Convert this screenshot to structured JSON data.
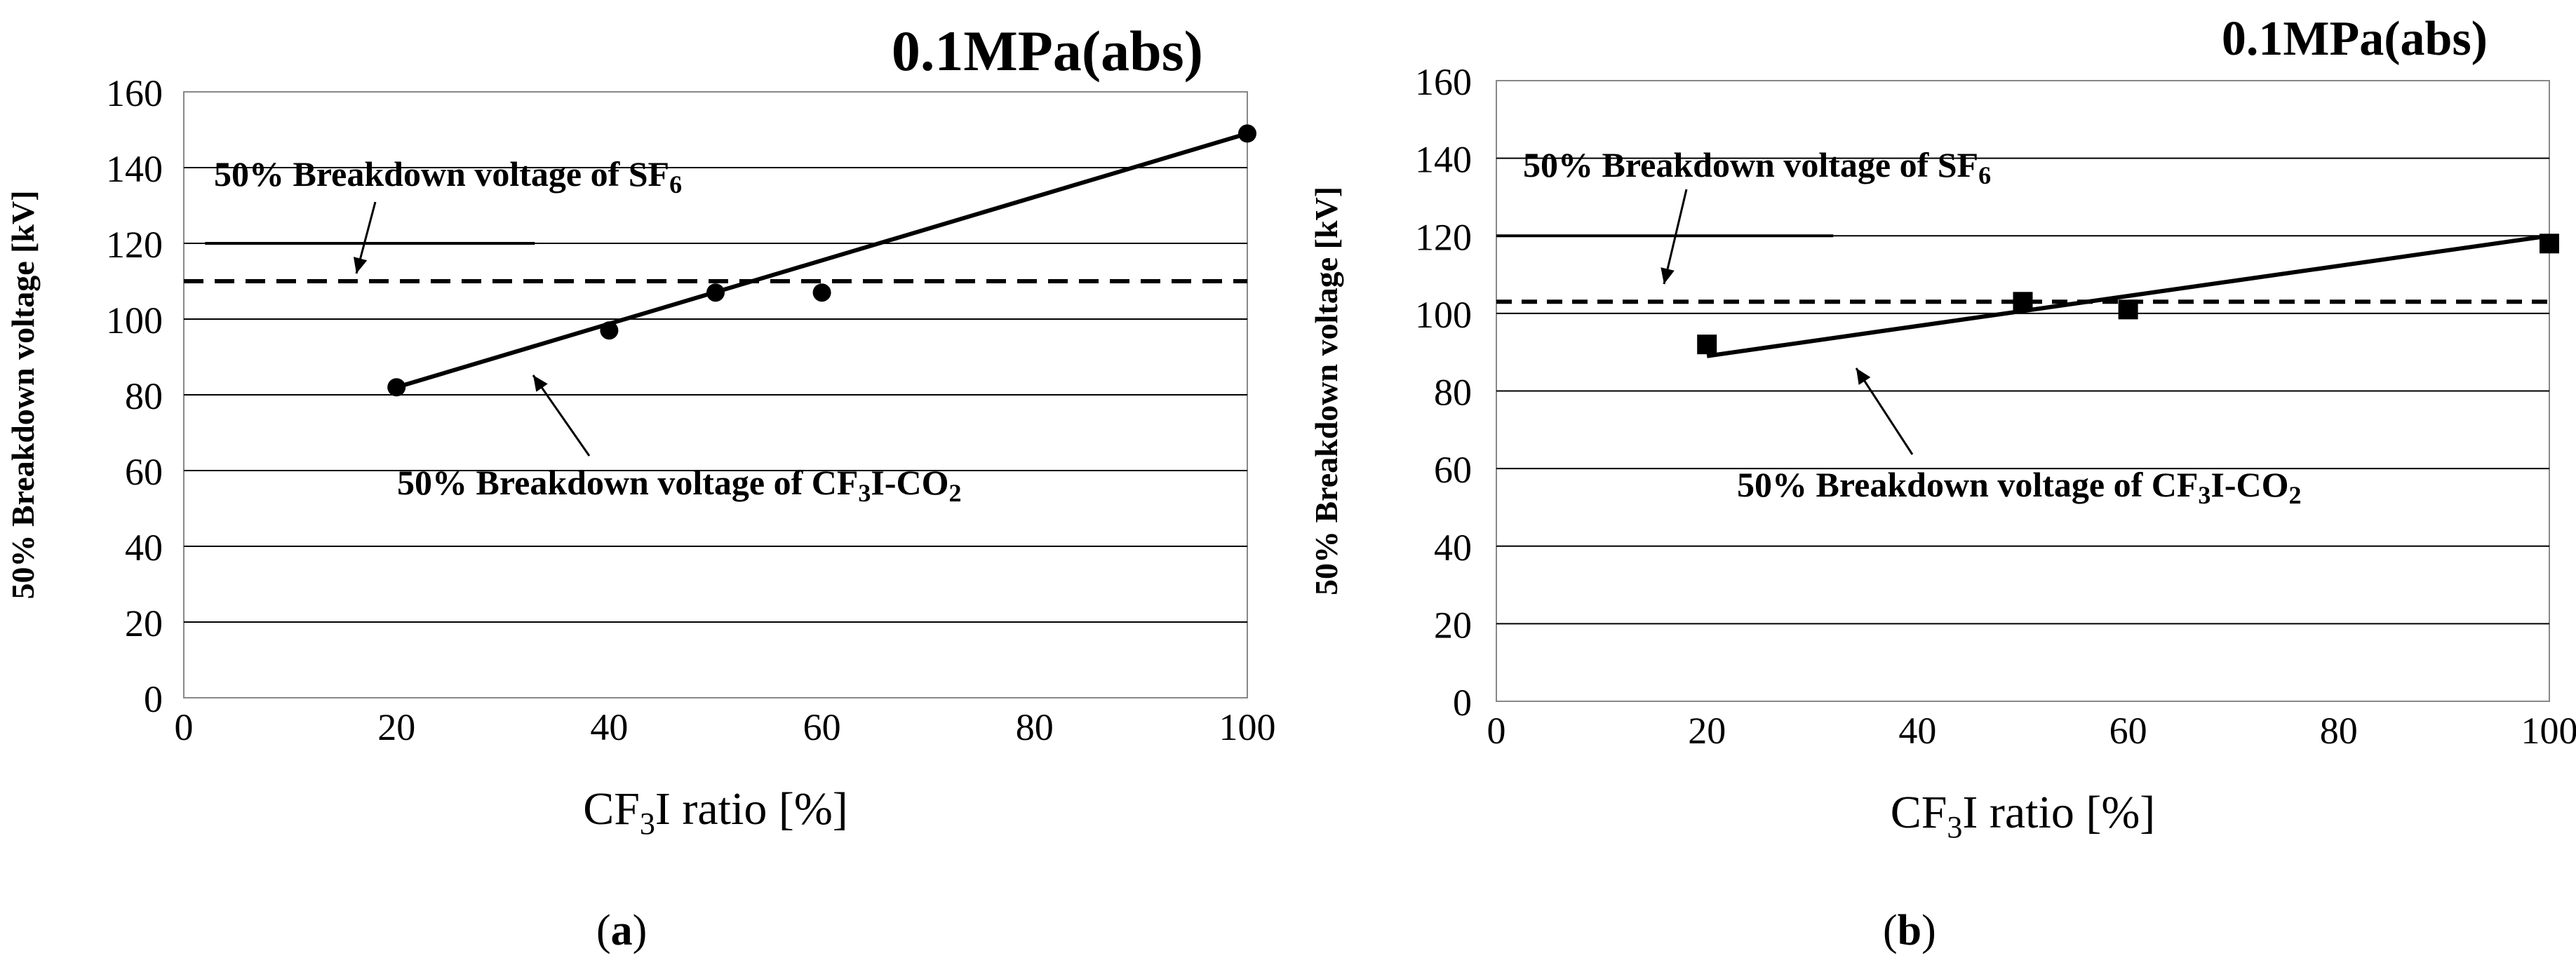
{
  "chart_data": [
    {
      "type": "line",
      "panel": "a",
      "header": "0.1MPa(abs)",
      "title": "",
      "xlabel": "CF3I ratio [%]",
      "ylabel": "50% Breakdown voltage [kV]",
      "xlim": [
        0,
        100
      ],
      "ylim": [
        0,
        160
      ],
      "xticks": [
        0,
        20,
        40,
        60,
        80,
        100
      ],
      "yticks": [
        0,
        20,
        40,
        60,
        80,
        100,
        120,
        140,
        160
      ],
      "grid": "horizontal",
      "marker": "circle",
      "series": [
        {
          "name": "50% Breakdown voltage of CF3I-CO2",
          "x": [
            20,
            40,
            50,
            60,
            100
          ],
          "values": [
            82,
            97,
            107,
            107,
            149
          ]
        }
      ],
      "fit_line": {
        "x": [
          20,
          100
        ],
        "y": [
          82,
          149
        ]
      },
      "reference_lines": [
        {
          "name": "50% Breakdown voltage of SF6",
          "y": 110,
          "style": "dashed"
        },
        {
          "name": "short solid segment",
          "y": 120,
          "x": [
            2,
            33
          ],
          "style": "solid"
        }
      ],
      "annotations": [
        {
          "text": "50% Breakdown voltage of SF",
          "sub": "6"
        },
        {
          "text": "50% Breakdown voltage of CF",
          "sub1": "3",
          "mid": "I-CO",
          "sub2": "2"
        }
      ],
      "caption": "a"
    },
    {
      "type": "line",
      "panel": "b",
      "header": "0.1MPa(abs)",
      "title": "",
      "xlabel": "CF3I ratio [%]",
      "ylabel": "50% Breakdown voltage [kV]",
      "xlim": [
        0,
        100
      ],
      "ylim": [
        0,
        160
      ],
      "xticks": [
        0,
        20,
        40,
        60,
        80,
        100
      ],
      "yticks": [
        0,
        20,
        40,
        60,
        80,
        100,
        120,
        140,
        160
      ],
      "grid": "horizontal",
      "marker": "square",
      "series": [
        {
          "name": "50% Breakdown voltage of CF3I-CO2",
          "x": [
            20,
            50,
            60,
            100
          ],
          "values": [
            92,
            103,
            101,
            118
          ]
        }
      ],
      "fit_line": {
        "x": [
          20,
          100
        ],
        "y": [
          89,
          120
        ]
      },
      "reference_lines": [
        {
          "name": "50% Breakdown voltage of SF6",
          "y": 103,
          "style": "dashed"
        },
        {
          "name": "short solid segment",
          "y": 120,
          "x": [
            0,
            32
          ],
          "style": "solid"
        }
      ],
      "annotations": [
        {
          "text": "50% Breakdown voltage of SF",
          "sub": "6"
        },
        {
          "text": "50% Breakdown voltage of CF",
          "sub1": "3",
          "mid": "I-CO",
          "sub2": "2"
        }
      ],
      "caption": "b"
    }
  ],
  "xlabel_parts": {
    "pre": "CF",
    "sub": "3",
    "post": "I ratio [%]"
  }
}
